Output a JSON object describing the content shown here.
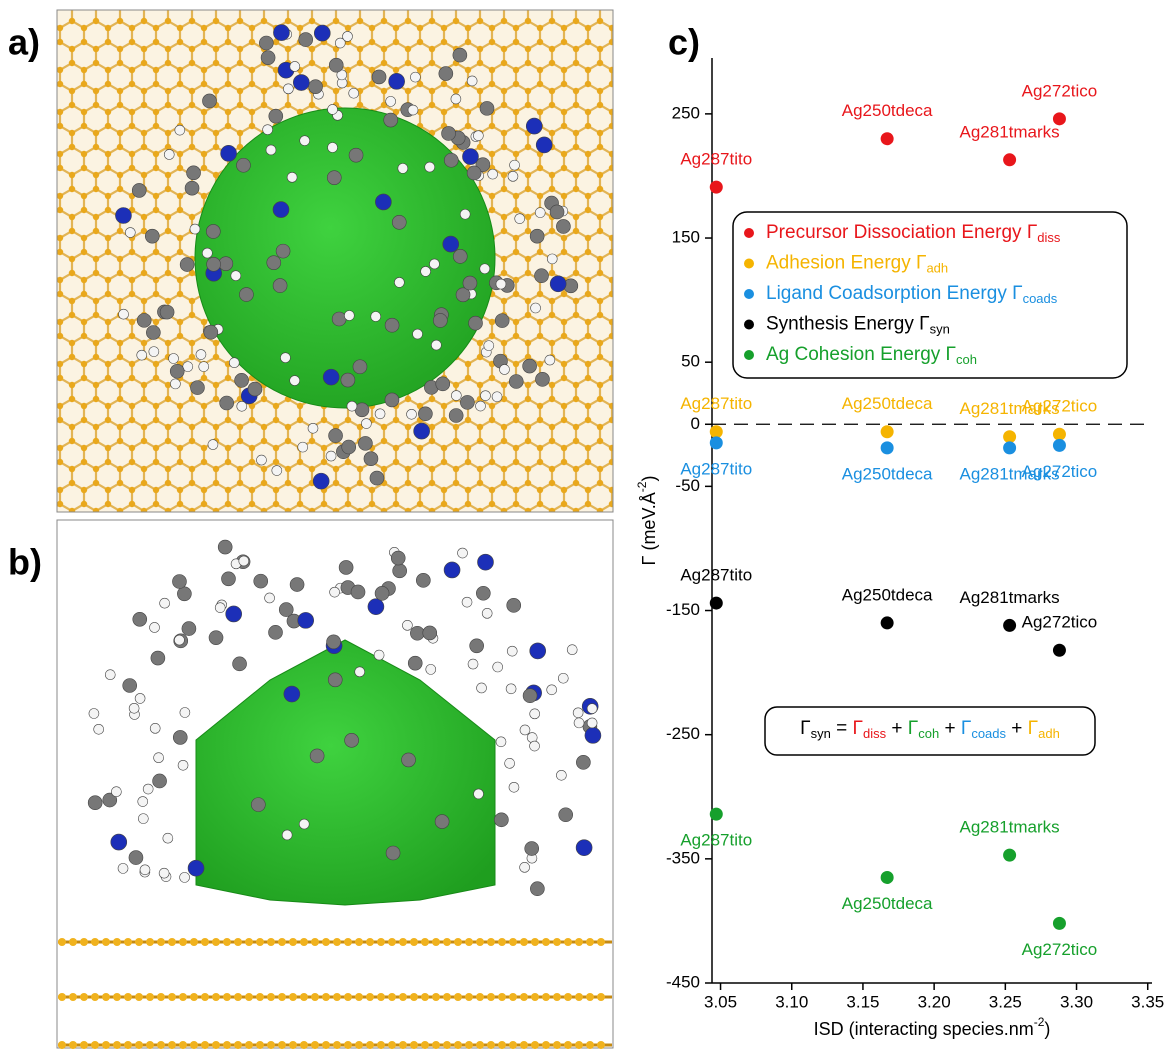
{
  "panel_labels": [
    "a)",
    "b)",
    "c)"
  ],
  "chart_data": {
    "type": "scatter",
    "xlabel": {
      "text": "ISD (interacting species.nm",
      "sup": "-2",
      "end": ")"
    },
    "ylabel": {
      "text": "Γ  (meV.Å",
      "sup": "-2",
      "end": ")"
    },
    "point_names": [
      "Ag287tito",
      "Ag250tdeca",
      "Ag281tmarks",
      "Ag272tico"
    ],
    "x": [
      3.047,
      3.167,
      3.253,
      3.288
    ],
    "series": [
      {
        "name": "Precursor Dissociation Energy Γ",
        "sub": "diss",
        "color": "#e8161b",
        "values": [
          191,
          230,
          213,
          246
        ]
      },
      {
        "name": "Adhesion Energy Γ",
        "sub": "adh",
        "color": "#f5b400",
        "values": [
          -6,
          -6,
          -10,
          -8
        ]
      },
      {
        "name": "Ligand Coadsorption Energy Γ",
        "sub": "coads",
        "color": "#1a8fe0",
        "values": [
          -15,
          -19,
          -19,
          -17
        ]
      },
      {
        "name": "Synthesis Energy Γ",
        "sub": "syn",
        "color": "#000000",
        "values": [
          -144,
          -160,
          -162,
          -182
        ]
      },
      {
        "name": "Ag Cohesion Energy Γ",
        "sub": "coh",
        "color": "#16a02c",
        "values": [
          -314,
          -365,
          -347,
          -402
        ]
      }
    ],
    "equation": [
      {
        "text": "Γ",
        "sub": "syn",
        "color": "#000000"
      },
      {
        "text": " = ",
        "color": "#000000"
      },
      {
        "text": "Γ",
        "sub": "diss",
        "color": "#e8161b"
      },
      {
        "text": " + ",
        "color": "#000000"
      },
      {
        "text": "Γ",
        "sub": "coh",
        "color": "#16a02c"
      },
      {
        "text": " + ",
        "color": "#000000"
      },
      {
        "text": "Γ",
        "sub": "coads",
        "color": "#1a8fe0"
      },
      {
        "text": " + ",
        "color": "#000000"
      },
      {
        "text": "Γ",
        "sub": "adh",
        "color": "#f5b400"
      }
    ],
    "xlim": [
      3.044,
      3.353
    ],
    "xticks": [
      {
        "value": 3.05,
        "label": "3.05"
      },
      {
        "value": 3.1,
        "label": "3.10"
      },
      {
        "value": 3.15,
        "label": "3.15"
      },
      {
        "value": 3.2,
        "label": "3.20"
      },
      {
        "value": 3.25,
        "label": "3.25"
      },
      {
        "value": 3.3,
        "label": "3.30"
      },
      {
        "value": 3.35,
        "label": "3.35"
      }
    ],
    "ylim": [
      -450,
      295
    ],
    "yticks": [
      250,
      150,
      50,
      0,
      -50,
      -150,
      -250,
      -350,
      -450
    ],
    "zero_line": true
  }
}
